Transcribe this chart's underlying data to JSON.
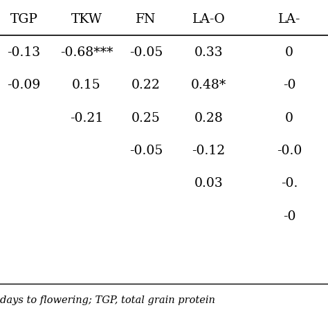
{
  "columns": [
    "TGP",
    "TKW",
    "FN",
    "LA-O",
    "LA-"
  ],
  "rows": [
    [
      "-0.13",
      "-0.68***",
      "-0.05",
      "0.33",
      "0"
    ],
    [
      "-0.09",
      "0.15",
      "0.22",
      "0.48*",
      "-0"
    ],
    [
      "",
      "-0.21",
      "0.25",
      "0.28",
      "0"
    ],
    [
      "",
      "",
      "-0.05",
      "-0.12",
      "-0.0"
    ],
    [
      "",
      "",
      "",
      "0.03",
      "-0."
    ],
    [
      "",
      "",
      "",
      "",
      "-0"
    ]
  ],
  "footer": "days to flowering; TGP, total grain protein",
  "bg_color": "#ffffff",
  "text_color": "#000000",
  "font_size": 13.5
}
